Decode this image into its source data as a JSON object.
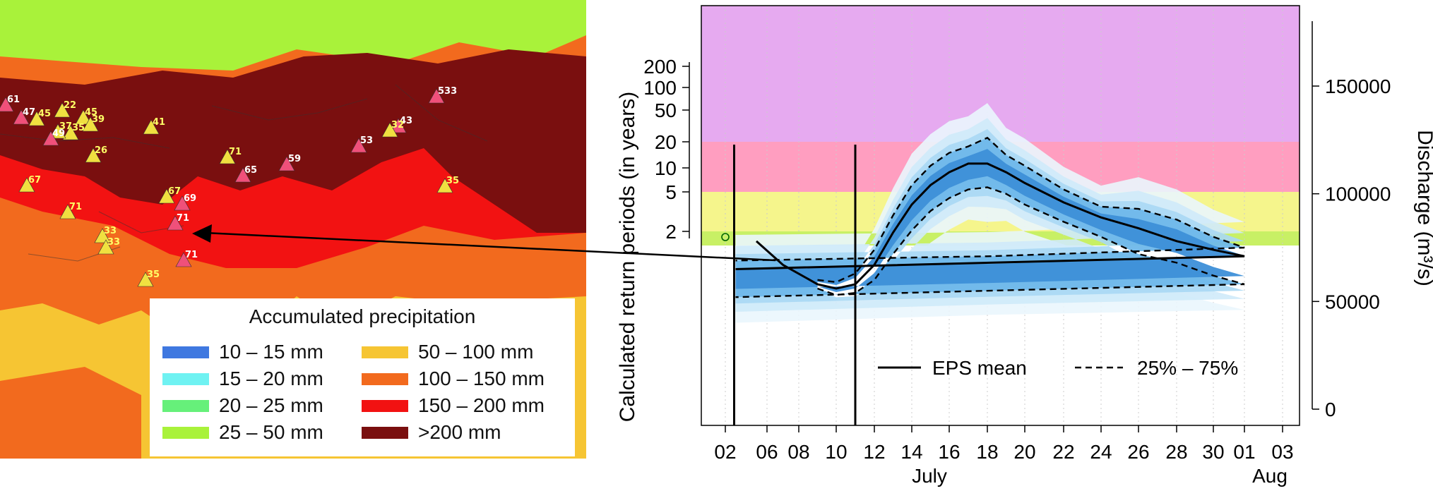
{
  "map": {
    "legend_title": "Accumulated precipitation",
    "legend": [
      {
        "label": "10 – 15 mm",
        "color": "#3f78e0"
      },
      {
        "label": "15 – 20 mm",
        "color": "#6ff2f2"
      },
      {
        "label": "20 – 25 mm",
        "color": "#66f07a"
      },
      {
        "label": "25 – 50 mm",
        "color": "#a9f23a"
      },
      {
        "label": "50 – 100 mm",
        "color": "#f6c533"
      },
      {
        "label": "100 – 150 mm",
        "color": "#f26a1e"
      },
      {
        "label": "150 – 200 mm",
        "color": "#f21212"
      },
      {
        "label": ">200 mm",
        "color": "#7a0f0f"
      }
    ],
    "stations": [
      {
        "label": "61",
        "alert": "pink"
      },
      {
        "label": "47",
        "alert": "pink"
      },
      {
        "label": "45",
        "alert": "yellow"
      },
      {
        "label": "22",
        "alert": "yellow"
      },
      {
        "label": "45",
        "alert": "yellow"
      },
      {
        "label": "39",
        "alert": "yellow"
      },
      {
        "label": "35",
        "alert": "yellow"
      },
      {
        "label": "37",
        "alert": "yellow"
      },
      {
        "label": "49",
        "alert": "pink"
      },
      {
        "label": "41",
        "alert": "yellow"
      },
      {
        "label": "26",
        "alert": "yellow"
      },
      {
        "label": "533",
        "alert": "pink"
      },
      {
        "label": "43",
        "alert": "pink"
      },
      {
        "label": "32",
        "alert": "yellow"
      },
      {
        "label": "53",
        "alert": "pink"
      },
      {
        "label": "71",
        "alert": "yellow"
      },
      {
        "label": "59",
        "alert": "pink"
      },
      {
        "label": "65",
        "alert": "pink"
      },
      {
        "label": "67",
        "alert": "yellow"
      },
      {
        "label": "35",
        "alert": "yellow"
      },
      {
        "label": "67",
        "alert": "yellow"
      },
      {
        "label": "69",
        "alert": "pink"
      },
      {
        "label": "71",
        "alert": "yellow"
      },
      {
        "label": "71",
        "alert": "pink"
      },
      {
        "label": "33",
        "alert": "yellow"
      },
      {
        "label": "33",
        "alert": "yellow"
      },
      {
        "label": "71",
        "alert": "pink"
      },
      {
        "label": "35",
        "alert": "yellow"
      }
    ]
  },
  "chart_data": {
    "type": "area",
    "ylabel_left": "Calculated return periods (in years)",
    "ylabel_right": "Discharge (m³/s)",
    "x_month_labels": [
      {
        "label": "July",
        "at": "2009-07-16"
      },
      {
        "label": "Aug",
        "at": "2009-08-03"
      }
    ],
    "x_ticks": [
      "02",
      "06",
      "08",
      "10",
      "12",
      "14",
      "16",
      "18",
      "20",
      "22",
      "24",
      "26",
      "28",
      "30",
      "01",
      "03"
    ],
    "left_ticks": [
      "200",
      "100",
      "50",
      "20",
      "10",
      "5",
      "2"
    ],
    "right_ticks": [
      "150000",
      "100000",
      "50000",
      "0"
    ],
    "right_ylim": [
      0,
      190000
    ],
    "alert_bands": [
      {
        "name": "severe",
        "color": "#e6aaf0",
        "from_years": 20,
        "to_years": 1000
      },
      {
        "name": "high",
        "color": "#ff9ec0",
        "from_years": 5,
        "to_years": 20
      },
      {
        "name": "medium",
        "color": "#f5f58c",
        "from_years": 2,
        "to_years": 5
      },
      {
        "name": "low",
        "color": "#c8f065",
        "from_years": 1.8,
        "to_years": 2
      }
    ],
    "vertical_markers": [
      "11",
      "03"
    ],
    "legend": [
      {
        "label": "EPS mean",
        "style": "solid"
      },
      {
        "label": "25% – 75%",
        "style": "dashed"
      }
    ],
    "series": [
      {
        "name": "EPS mean",
        "x": [
          "05",
          "07",
          "09",
          "10",
          "11",
          "12",
          "13",
          "14",
          "15",
          "16",
          "17",
          "18",
          "19",
          "20",
          "22",
          "24",
          "26",
          "28",
          "30",
          "01",
          "02",
          "03"
        ],
        "values": [
          78000,
          67000,
          58000,
          56000,
          58000,
          67000,
          82000,
          95000,
          104000,
          110000,
          114000,
          114000,
          110000,
          105000,
          96000,
          89000,
          84000,
          78000,
          74000,
          71000,
          68000,
          65000
        ]
      },
      {
        "name": "75%",
        "x": [
          "09",
          "10",
          "11",
          "12",
          "13",
          "14",
          "15",
          "16",
          "17",
          "18",
          "19",
          "20",
          "22",
          "24",
          "26",
          "28",
          "30",
          "01",
          "02",
          "03"
        ],
        "values": [
          60000,
          59000,
          63000,
          74000,
          90000,
          104000,
          113000,
          119000,
          122000,
          126000,
          118000,
          113000,
          102000,
          94000,
          93000,
          88000,
          80000,
          75000,
          71000,
          69000
        ]
      },
      {
        "name": "25%",
        "x": [
          "09",
          "10",
          "11",
          "12",
          "13",
          "14",
          "15",
          "16",
          "17",
          "18",
          "19",
          "20",
          "22",
          "24",
          "26",
          "28",
          "30",
          "01",
          "02",
          "03"
        ],
        "values": [
          56000,
          53000,
          54000,
          60000,
          72000,
          83000,
          92000,
          98000,
          102000,
          103000,
          100000,
          95000,
          87000,
          80000,
          72000,
          68000,
          62000,
          58000,
          55000,
          52000
        ]
      }
    ],
    "observed_point": {
      "x": "02",
      "y": 78000
    }
  }
}
